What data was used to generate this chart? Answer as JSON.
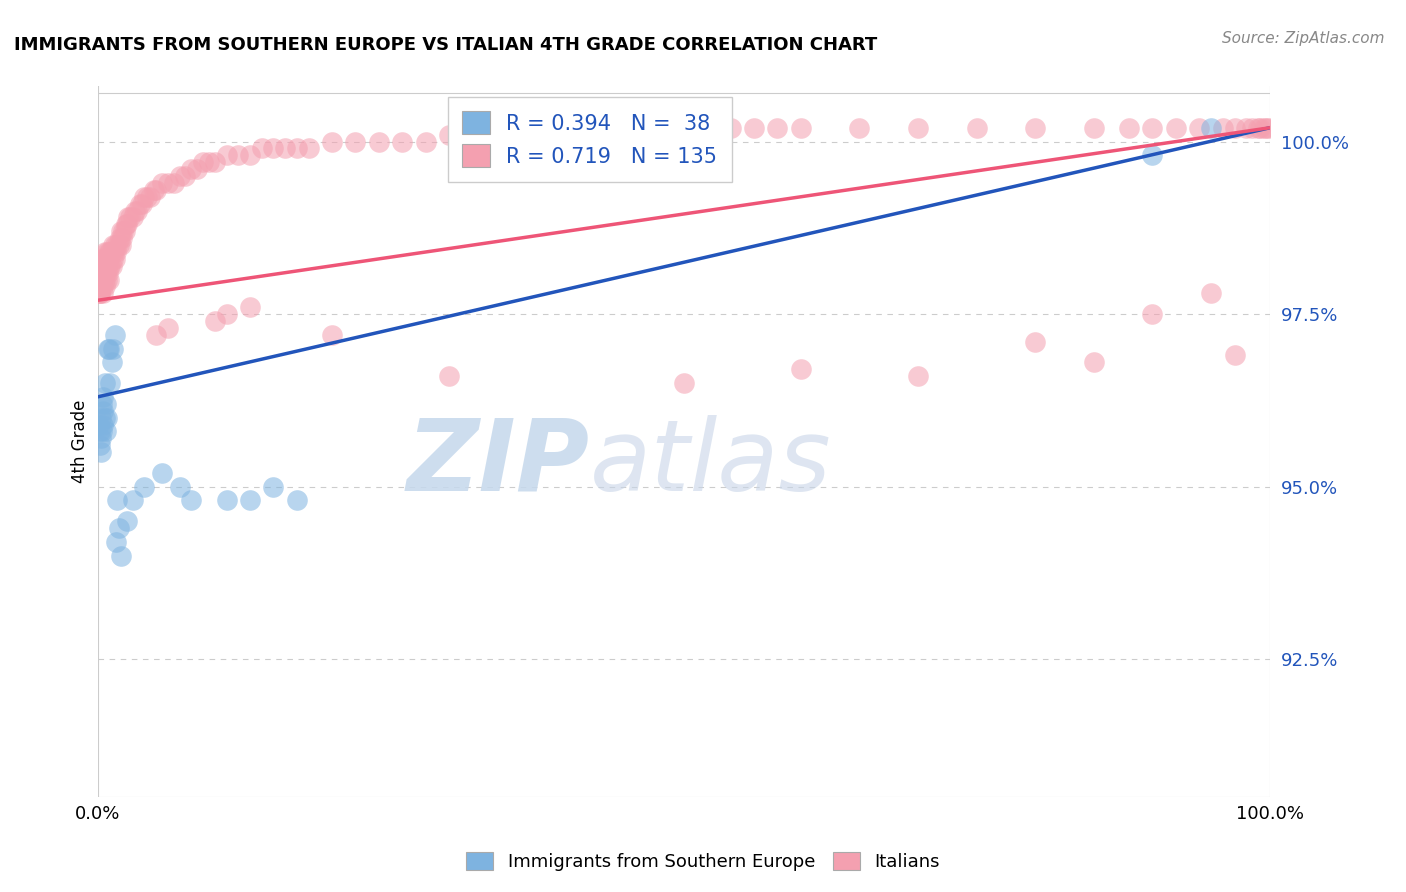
{
  "title": "IMMIGRANTS FROM SOUTHERN EUROPE VS ITALIAN 4TH GRADE CORRELATION CHART",
  "source_text": "Source: ZipAtlas.com",
  "ylabel": "4th Grade",
  "watermark_zip": "ZIP",
  "watermark_atlas": "atlas",
  "legend_label_blue": "Immigrants from Southern Europe",
  "legend_label_pink": "Italians",
  "R_blue": 0.394,
  "N_blue": 38,
  "R_pink": 0.719,
  "N_pink": 135,
  "color_blue": "#7EB3E0",
  "color_pink": "#F4A0B0",
  "color_line_blue": "#2255BB",
  "color_line_pink": "#EE5577",
  "xmin": 0.0,
  "xmax": 1.0,
  "ymin": 0.905,
  "ymax": 1.008,
  "yticks": [
    0.925,
    0.95,
    0.975,
    1.0
  ],
  "ytick_labels": [
    "92.5%",
    "95.0%",
    "97.5%",
    "100.0%"
  ],
  "xticks": [
    0.0,
    1.0
  ],
  "xtick_labels": [
    "0.0%",
    "100.0%"
  ],
  "blue_line_x0": 0.0,
  "blue_line_y0": 0.963,
  "blue_line_x1": 1.0,
  "blue_line_y1": 1.002,
  "pink_line_x0": 0.0,
  "pink_line_y0": 0.977,
  "pink_line_x1": 1.0,
  "pink_line_y1": 1.002,
  "blue_x": [
    0.001,
    0.002,
    0.002,
    0.003,
    0.003,
    0.003,
    0.004,
    0.004,
    0.005,
    0.005,
    0.005,
    0.006,
    0.006,
    0.007,
    0.007,
    0.008,
    0.009,
    0.01,
    0.011,
    0.012,
    0.013,
    0.015,
    0.016,
    0.017,
    0.018,
    0.02,
    0.025,
    0.03,
    0.04,
    0.055,
    0.07,
    0.08,
    0.11,
    0.13,
    0.15,
    0.17,
    0.9,
    0.95
  ],
  "blue_y": [
    0.959,
    0.956,
    0.958,
    0.957,
    0.955,
    0.96,
    0.958,
    0.962,
    0.959,
    0.961,
    0.963,
    0.965,
    0.96,
    0.958,
    0.962,
    0.96,
    0.97,
    0.97,
    0.965,
    0.968,
    0.97,
    0.972,
    0.942,
    0.948,
    0.944,
    0.94,
    0.945,
    0.948,
    0.95,
    0.952,
    0.95,
    0.948,
    0.948,
    0.948,
    0.95,
    0.948,
    0.998,
    1.002
  ],
  "pink_x": [
    0.001,
    0.001,
    0.002,
    0.002,
    0.002,
    0.003,
    0.003,
    0.003,
    0.004,
    0.004,
    0.005,
    0.005,
    0.005,
    0.006,
    0.006,
    0.006,
    0.007,
    0.007,
    0.008,
    0.008,
    0.008,
    0.009,
    0.009,
    0.01,
    0.01,
    0.01,
    0.011,
    0.011,
    0.012,
    0.012,
    0.013,
    0.013,
    0.014,
    0.015,
    0.015,
    0.016,
    0.017,
    0.018,
    0.019,
    0.02,
    0.02,
    0.021,
    0.022,
    0.023,
    0.024,
    0.025,
    0.026,
    0.028,
    0.03,
    0.032,
    0.034,
    0.036,
    0.038,
    0.04,
    0.042,
    0.045,
    0.048,
    0.05,
    0.055,
    0.06,
    0.065,
    0.07,
    0.075,
    0.08,
    0.085,
    0.09,
    0.095,
    0.1,
    0.11,
    0.12,
    0.13,
    0.14,
    0.15,
    0.16,
    0.17,
    0.18,
    0.2,
    0.22,
    0.24,
    0.26,
    0.28,
    0.3,
    0.32,
    0.34,
    0.36,
    0.38,
    0.4,
    0.42,
    0.44,
    0.46,
    0.48,
    0.5,
    0.52,
    0.54,
    0.56,
    0.58,
    0.6,
    0.65,
    0.7,
    0.75,
    0.8,
    0.85,
    0.88,
    0.9,
    0.92,
    0.94,
    0.96,
    0.97,
    0.98,
    0.985,
    0.99,
    0.992,
    0.995,
    0.997,
    0.999,
    0.002,
    0.003,
    0.004,
    0.005,
    0.006,
    0.05,
    0.06,
    0.1,
    0.11,
    0.13,
    0.2,
    0.3,
    0.5,
    0.6,
    0.7,
    0.8,
    0.85,
    0.9,
    0.95,
    0.97
  ],
  "pink_y": [
    0.978,
    0.98,
    0.978,
    0.98,
    0.982,
    0.979,
    0.981,
    0.983,
    0.98,
    0.982,
    0.979,
    0.981,
    0.983,
    0.98,
    0.982,
    0.984,
    0.981,
    0.983,
    0.98,
    0.982,
    0.984,
    0.981,
    0.983,
    0.98,
    0.982,
    0.984,
    0.982,
    0.984,
    0.982,
    0.984,
    0.983,
    0.985,
    0.984,
    0.983,
    0.985,
    0.984,
    0.985,
    0.985,
    0.986,
    0.985,
    0.987,
    0.986,
    0.987,
    0.987,
    0.988,
    0.988,
    0.989,
    0.989,
    0.989,
    0.99,
    0.99,
    0.991,
    0.991,
    0.992,
    0.992,
    0.992,
    0.993,
    0.993,
    0.994,
    0.994,
    0.994,
    0.995,
    0.995,
    0.996,
    0.996,
    0.997,
    0.997,
    0.997,
    0.998,
    0.998,
    0.998,
    0.999,
    0.999,
    0.999,
    0.999,
    0.999,
    1.0,
    1.0,
    1.0,
    1.0,
    1.0,
    1.001,
    1.001,
    1.001,
    1.001,
    1.001,
    1.001,
    1.001,
    1.001,
    1.001,
    1.001,
    1.002,
    1.002,
    1.002,
    1.002,
    1.002,
    1.002,
    1.002,
    1.002,
    1.002,
    1.002,
    1.002,
    1.002,
    1.002,
    1.002,
    1.002,
    1.002,
    1.002,
    1.002,
    1.002,
    1.002,
    1.002,
    1.002,
    1.002,
    1.002,
    0.978,
    0.979,
    0.98,
    0.978,
    0.979,
    0.972,
    0.973,
    0.974,
    0.975,
    0.976,
    0.972,
    0.966,
    0.965,
    0.967,
    0.966,
    0.971,
    0.968,
    0.975,
    0.978,
    0.969
  ]
}
